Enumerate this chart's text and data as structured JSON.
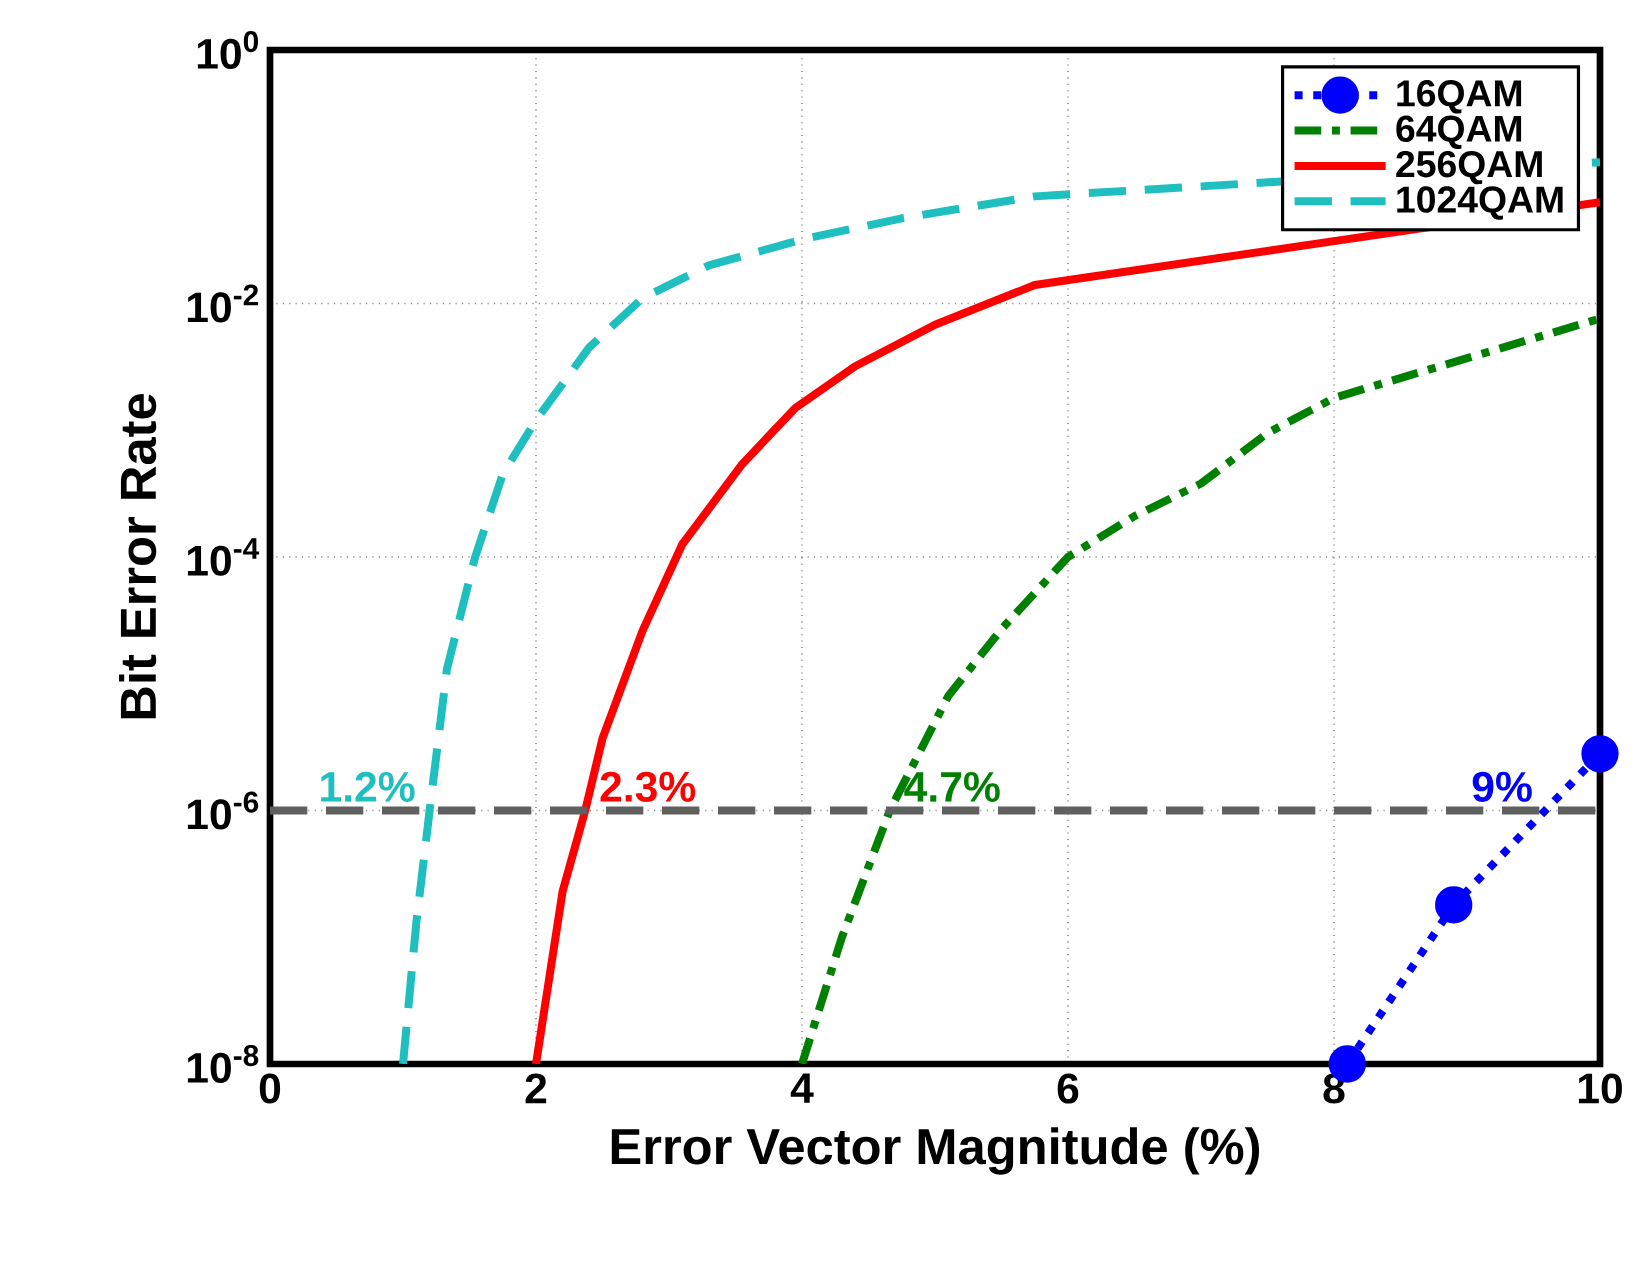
{
  "chart_data": {
    "type": "line",
    "xlabel": "Error Vector Magnitude (%)",
    "ylabel": "Bit Error Rate",
    "log": "y",
    "grid": true,
    "legend": "top right",
    "xlim": [
      0,
      10
    ],
    "xticks": [
      0,
      2,
      4,
      6,
      8,
      10
    ],
    "ylim": [
      1e-08,
      1
    ],
    "yticks": [
      {
        "value": 1e-08,
        "label": "10$^{-8}$"
      },
      {
        "value": 1e-06,
        "label": "10$^{-6}$"
      },
      {
        "value": 0.0001,
        "label": "10$^{-4}$"
      },
      {
        "value": 0.01,
        "label": "10$^{-2}$"
      },
      {
        "value": 1,
        "label": "10$^{0}$"
      }
    ],
    "series": [
      {
        "name": "16QAM",
        "color": "#0000ff",
        "line_style": "dotted",
        "marker": "circle",
        "x": [
          8.1,
          8.9,
          10
        ],
        "values": [
          1e-08,
          1.8e-07,
          2.8e-06
        ]
      },
      {
        "name": "64QAM",
        "color": "#008000",
        "line_style": "dashdot",
        "marker": "none",
        "x": [
          4,
          4.3,
          4.66,
          5.1,
          5.5,
          6.0,
          6.5,
          7.0,
          7.5,
          8.0,
          10
        ],
        "values": [
          1e-08,
          1e-07,
          1e-06,
          8e-06,
          2.7e-05,
          0.0001,
          0.00021,
          0.00038,
          0.00095,
          0.0018,
          0.0076
        ]
      },
      {
        "name": "256QAM",
        "color": "#ff0000",
        "line_style": "solid",
        "marker": "none",
        "x": [
          2,
          2.2,
          2.37,
          2.5,
          2.8,
          3.1,
          3.55,
          3.95,
          4.4,
          5.0,
          5.75,
          10
        ],
        "values": [
          1e-08,
          2.3e-07,
          1e-06,
          3.7e-06,
          2.6e-05,
          0.000126,
          0.00054,
          0.0015,
          0.0032,
          0.0068,
          0.014,
          0.063
        ]
      },
      {
        "name": "1024QAM",
        "color": "#20bfbf",
        "line_style": "dashed",
        "marker": "none",
        "x": [
          1.0,
          1.1,
          1.2,
          1.33,
          1.54,
          1.75,
          2.0,
          2.4,
          2.8,
          3.3,
          4.0,
          4.75,
          5.75,
          10
        ],
        "values": [
          1e-08,
          1.3e-07,
          1e-06,
          1.3e-05,
          9.8e-05,
          0.00045,
          0.0012,
          0.0045,
          0.011,
          0.02,
          0.032,
          0.047,
          0.07,
          0.13
        ]
      }
    ],
    "ref_lines": [
      {
        "axis": "y",
        "value": 1e-06,
        "color": "#606060",
        "line_style": "dashed"
      }
    ],
    "annotations": [
      {
        "text": "1.2%",
        "x": 1.2,
        "y": 1e-06
      },
      {
        "text": "2.3%",
        "x": 2.37,
        "y": 1e-06
      },
      {
        "text": "4.7%",
        "x": 4.66,
        "y": 1e-06
      },
      {
        "text": "9%",
        "x": 9.6,
        "y": 1e-06
      }
    ]
  }
}
